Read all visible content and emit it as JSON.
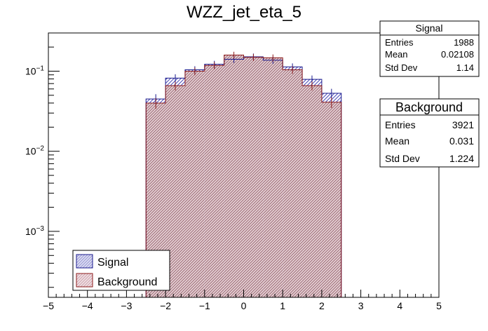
{
  "chart_data": {
    "type": "histogram",
    "title": "WZZ_jet_eta_5",
    "xlabel": "",
    "ylabel": "",
    "xlim": [
      -5,
      5
    ],
    "ylog": true,
    "ylim": [
      0.00015,
      0.3
    ],
    "x_ticks": [
      "−5",
      "−4",
      "−3",
      "−2",
      "−1",
      "0",
      "1",
      "2",
      "3",
      "4",
      "5"
    ],
    "x_tick_values": [
      -5,
      -4,
      -3,
      -2,
      -1,
      0,
      1,
      2,
      3,
      4,
      5
    ],
    "y_ticks": [
      {
        "base": "10",
        "exp": "−1",
        "value": 0.1
      },
      {
        "base": "10",
        "exp": "−2",
        "value": 0.01
      },
      {
        "base": "10",
        "exp": "−3",
        "value": 0.001
      }
    ],
    "bin_edges": [
      -2.5,
      -2.0,
      -1.5,
      -1.0,
      -0.5,
      0.0,
      0.5,
      1.0,
      1.5,
      2.0,
      2.5
    ],
    "series": [
      {
        "name": "Signal",
        "line_color": "#1a1a8c",
        "fill_color": "#7f7fd1",
        "values": [
          0.045,
          0.082,
          0.104,
          0.122,
          0.141,
          0.151,
          0.137,
          0.113,
          0.079,
          0.053
        ]
      },
      {
        "name": "Background",
        "line_color": "#8c1a1a",
        "fill_color": "#c98a95",
        "values": [
          0.04,
          0.066,
          0.1,
          0.118,
          0.159,
          0.149,
          0.147,
          0.104,
          0.066,
          0.041
        ]
      }
    ],
    "legend": {
      "position": "bottom-left",
      "entries": [
        "Signal",
        "Background"
      ]
    },
    "stats": [
      {
        "title": "Signal",
        "rows": [
          {
            "label": "Entries",
            "value": "1988"
          },
          {
            "label": "Mean",
            "value": "0.02108"
          },
          {
            "label": "Std Dev",
            "value": "1.14"
          }
        ]
      },
      {
        "title": "Background",
        "rows": [
          {
            "label": "Entries",
            "value": "3921"
          },
          {
            "label": "Mean",
            "value": "0.031"
          },
          {
            "label": "Std Dev",
            "value": "1.224"
          }
        ]
      }
    ]
  }
}
